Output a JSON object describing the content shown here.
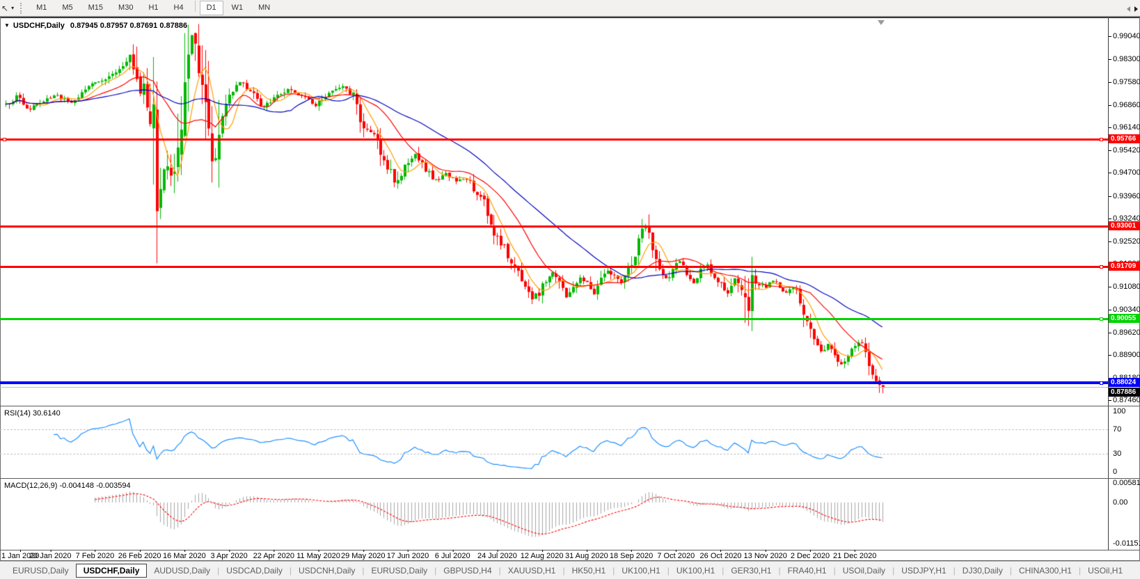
{
  "toolbar": {
    "timeframes": [
      "M1",
      "M5",
      "M15",
      "M30",
      "H1",
      "H4",
      "D1",
      "W1",
      "MN"
    ],
    "active_timeframe": "D1"
  },
  "chart": {
    "title": {
      "symbol_period": "USDCHF,Daily",
      "ohlc": "0.87945 0.87957 0.87691 0.87886"
    }
  },
  "chart_data": {
    "type": "candlestick",
    "symbol": "USDCHF",
    "timeframe": "Daily",
    "last_bar": {
      "open": 0.87945,
      "high": 0.87957,
      "low": 0.87691,
      "close": 0.87886
    },
    "bar_count": 256,
    "up_color": "#00b800",
    "down_color": "#ff0000",
    "price_axis": {
      "labels": [
        "0.99040",
        "0.98300",
        "0.97580",
        "0.96860",
        "0.96140",
        "0.95420",
        "0.94700",
        "0.93960",
        "0.93240",
        "0.92520",
        "0.91800",
        "0.91080",
        "0.90340",
        "0.89620",
        "0.88900",
        "0.88180",
        "0.87460"
      ],
      "top": 0.9955,
      "bottom": 0.8726
    },
    "x_tick_labels": [
      "1 Jan 2020",
      "20 Jan 2020",
      "7 Feb 2020",
      "26 Feb 2020",
      "16 Mar 2020",
      "3 Apr 2020",
      "22 Apr 2020",
      "11 May 2020",
      "29 May 2020",
      "17 Jun 2020",
      "6 Jul 2020",
      "24 Jul 2020",
      "12 Aug 2020",
      "31 Aug 2020",
      "18 Sep 2020",
      "7 Oct 2020",
      "26 Oct 2020",
      "13 Nov 2020",
      "2 Dec 2020",
      "21 Dec 2020"
    ],
    "bars_per_tick": 13,
    "horizontal_lines": [
      {
        "label": "0.95766",
        "value": 0.95766,
        "color": "#ff0000",
        "width": 3,
        "right_marker": true,
        "left_marker": true
      },
      {
        "label": "0.93001",
        "value": 0.93001,
        "color": "#ff0000",
        "width": 3,
        "right_marker": false,
        "left_marker": false
      },
      {
        "label": "0.91709",
        "value": 0.91709,
        "color": "#ff0000",
        "width": 3,
        "right_marker": true,
        "left_marker": false
      },
      {
        "label": "0.90055",
        "value": 0.90055,
        "color": "#00d400",
        "width": 3,
        "right_marker": true,
        "left_marker": false
      },
      {
        "label": "0.88024",
        "value": 0.88024,
        "color": "#0000ff",
        "width": 4,
        "right_marker": true,
        "left_marker": false
      }
    ],
    "current_price": {
      "label": "0.87886",
      "value": 0.87886,
      "line_color": "#bdbdbd",
      "tag_bg": "#000000"
    },
    "moving_averages": [
      {
        "name": "ma-fast",
        "period": 7,
        "color": "#ff9e00"
      },
      {
        "name": "ma-medium",
        "period": 18,
        "color": "#ff0000"
      },
      {
        "name": "ma-slow",
        "period": 40,
        "color": "#0000bf"
      }
    ],
    "close_path_anchors": [
      [
        0,
        0.9685
      ],
      [
        3,
        0.9714
      ],
      [
        6,
        0.9668
      ],
      [
        10,
        0.9692
      ],
      [
        14,
        0.9716
      ],
      [
        19,
        0.9697
      ],
      [
        24,
        0.9744
      ],
      [
        29,
        0.9766
      ],
      [
        33,
        0.98
      ],
      [
        36,
        0.983
      ],
      [
        38,
        0.9772
      ],
      [
        41,
        0.9702
      ],
      [
        43,
        0.9612
      ],
      [
        44,
        0.942
      ],
      [
        46,
        0.9495
      ],
      [
        48,
        0.944
      ],
      [
        50,
        0.956
      ],
      [
        52,
        0.9745
      ],
      [
        54,
        0.9885
      ],
      [
        56,
        0.98
      ],
      [
        58,
        0.9692
      ],
      [
        60,
        0.9565
      ],
      [
        61,
        0.9512
      ],
      [
        63,
        0.9648
      ],
      [
        65,
        0.9718
      ],
      [
        68,
        0.9758
      ],
      [
        71,
        0.973
      ],
      [
        74,
        0.9682
      ],
      [
        78,
        0.9706
      ],
      [
        82,
        0.9734
      ],
      [
        86,
        0.9714
      ],
      [
        90,
        0.9682
      ],
      [
        94,
        0.9722
      ],
      [
        98,
        0.974
      ],
      [
        101,
        0.9718
      ],
      [
        104,
        0.9612
      ],
      [
        107,
        0.9598
      ],
      [
        110,
        0.9518
      ],
      [
        113,
        0.9438
      ],
      [
        116,
        0.9482
      ],
      [
        119,
        0.9532
      ],
      [
        122,
        0.9478
      ],
      [
        125,
        0.9446
      ],
      [
        128,
        0.9466
      ],
      [
        131,
        0.944
      ],
      [
        134,
        0.9452
      ],
      [
        137,
        0.94
      ],
      [
        139,
        0.9384
      ],
      [
        141,
        0.9318
      ],
      [
        143,
        0.9256
      ],
      [
        145,
        0.923
      ],
      [
        147,
        0.918
      ],
      [
        149,
        0.9152
      ],
      [
        151,
        0.9118
      ],
      [
        153,
        0.9066
      ],
      [
        155,
        0.9086
      ],
      [
        157,
        0.9122
      ],
      [
        159,
        0.9152
      ],
      [
        161,
        0.9114
      ],
      [
        163,
        0.9076
      ],
      [
        165,
        0.91
      ],
      [
        167,
        0.9136
      ],
      [
        169,
        0.912
      ],
      [
        171,
        0.9086
      ],
      [
        173,
        0.913
      ],
      [
        175,
        0.916
      ],
      [
        177,
        0.9138
      ],
      [
        179,
        0.912
      ],
      [
        181,
        0.9162
      ],
      [
        183,
        0.9216
      ],
      [
        185,
        0.9276
      ],
      [
        186,
        0.9294
      ],
      [
        187,
        0.9258
      ],
      [
        188,
        0.9218
      ],
      [
        190,
        0.9154
      ],
      [
        192,
        0.913
      ],
      [
        194,
        0.9164
      ],
      [
        196,
        0.919
      ],
      [
        198,
        0.915
      ],
      [
        200,
        0.912
      ],
      [
        202,
        0.9158
      ],
      [
        204,
        0.9178
      ],
      [
        206,
        0.914
      ],
      [
        208,
        0.9114
      ],
      [
        210,
        0.9086
      ],
      [
        212,
        0.913
      ],
      [
        214,
        0.9106
      ],
      [
        215,
        0.904
      ],
      [
        216,
        0.8996
      ],
      [
        217,
        0.9132
      ],
      [
        219,
        0.9118
      ],
      [
        221,
        0.9104
      ],
      [
        223,
        0.9124
      ],
      [
        225,
        0.9108
      ],
      [
        227,
        0.909
      ],
      [
        229,
        0.9104
      ],
      [
        231,
        0.9058
      ],
      [
        233,
        0.8984
      ],
      [
        235,
        0.8938
      ],
      [
        237,
        0.8904
      ],
      [
        239,
        0.8924
      ],
      [
        241,
        0.8888
      ],
      [
        243,
        0.8864
      ],
      [
        245,
        0.8894
      ],
      [
        247,
        0.8918
      ],
      [
        249,
        0.8938
      ],
      [
        250,
        0.8904
      ],
      [
        251,
        0.8868
      ],
      [
        252,
        0.8838
      ],
      [
        253,
        0.8812
      ],
      [
        254,
        0.8798
      ],
      [
        255,
        0.87886
      ]
    ],
    "volatility_regions": [
      [
        36,
        62,
        2.4
      ],
      [
        104,
        118,
        1.4
      ],
      [
        139,
        156,
        1.3
      ],
      [
        183,
        190,
        1.3
      ],
      [
        213,
        218,
        1.7
      ],
      [
        229,
        237,
        1.3
      ]
    ],
    "wick_overrides": {
      "36": {
        "high": 0.9842
      },
      "44": {
        "low": 0.9182
      },
      "54": {
        "high": 0.9901
      },
      "216": {
        "low": 0.8983
      },
      "254": {
        "low": 0.877
      },
      "255": {
        "open": 0.87945,
        "high": 0.87957,
        "low": 0.87691,
        "close": 0.87886
      }
    }
  },
  "rsi": {
    "label": "RSI(14)",
    "value": "30.6140",
    "period": 14,
    "axis_labels": [
      "100",
      "70",
      "30",
      "0"
    ],
    "level_lines": [
      70,
      30
    ],
    "line_color": "#1e90ff"
  },
  "macd": {
    "label": "MACD(12,26,9)",
    "values": "-0.004148 -0.003594",
    "periods": [
      12,
      26,
      9
    ],
    "axis_labels": [
      "0.005818",
      "0.00",
      "-0.011514"
    ],
    "axis_values": [
      0.005818,
      0.0,
      -0.011514
    ],
    "histogram_color": "#a6a6a6",
    "signal_color": "#ff0000"
  },
  "tabs": {
    "items": [
      "EURUSD,Daily",
      "USDCHF,Daily",
      "AUDUSD,Daily",
      "USDCAD,Daily",
      "USDCNH,Daily",
      "EURUSD,Daily",
      "GBPUSD,H4",
      "XAUUSD,H1",
      "HK50,H1",
      "UK100,H1",
      "UK100,H1",
      "GER30,H1",
      "FRA40,H1",
      "USOil,Daily",
      "USDJPY,H1",
      "DJ30,Daily",
      "CHINA300,H1",
      "USOil,H1"
    ],
    "active_index": 1
  }
}
